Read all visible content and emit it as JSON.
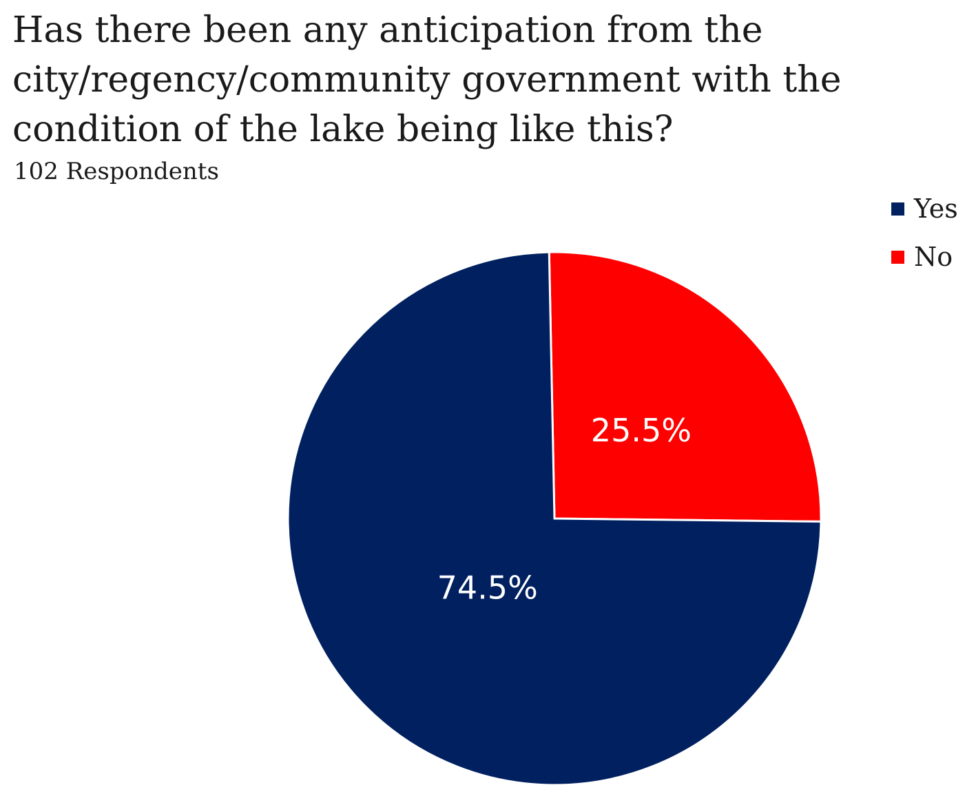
{
  "chart_data": {
    "type": "pie",
    "title": "Has there been any anticipation from the city/regency/community government with the condition of the lake being like this?",
    "subtitle": "102 Respondents",
    "legend_position": "top-right",
    "slices": [
      {
        "label": "No",
        "value": 25.5,
        "display": "25.5%",
        "color": "#ff0000"
      },
      {
        "label": "Yes",
        "value": 74.5,
        "display": "74.5%",
        "color": "#002060"
      }
    ],
    "legend": [
      {
        "label": "Yes",
        "color": "#002060"
      },
      {
        "label": "No",
        "color": "#ff0000"
      }
    ]
  }
}
